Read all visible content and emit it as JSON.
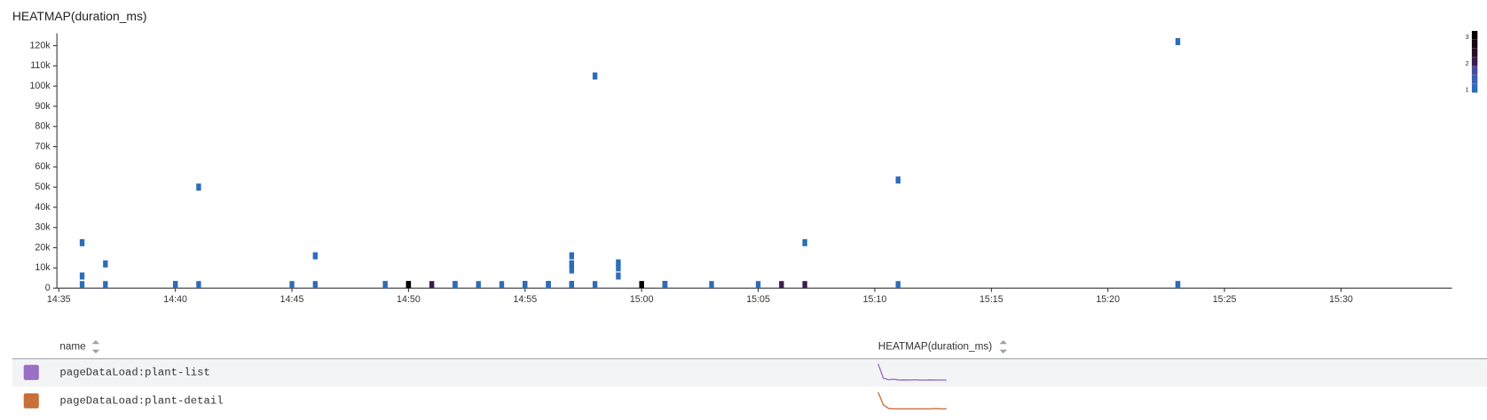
{
  "chart_data": {
    "type": "heatmap",
    "title": "HEATMAP(duration_ms)",
    "xlim": [
      "14:35",
      "15:35"
    ],
    "xticks": [
      "14:35",
      "14:40",
      "14:45",
      "14:50",
      "14:55",
      "15:00",
      "15:05",
      "15:10",
      "15:15",
      "15:20",
      "15:25",
      "15:30"
    ],
    "ylim": [
      0,
      125000
    ],
    "yticks": [
      0,
      {
        "value": 10000,
        "label": "10k"
      },
      {
        "value": 20000,
        "label": "20k"
      },
      {
        "value": 30000,
        "label": "30k"
      },
      {
        "value": 40000,
        "label": "40k"
      },
      {
        "value": 50000,
        "label": "50k"
      },
      {
        "value": 60000,
        "label": "60k"
      },
      {
        "value": 70000,
        "label": "70k"
      },
      {
        "value": 80000,
        "label": "80k"
      },
      {
        "value": 90000,
        "label": "90k"
      },
      {
        "value": 100000,
        "label": "100k"
      },
      {
        "value": 110000,
        "label": "110k"
      },
      {
        "value": 120000,
        "label": "120k"
      }
    ],
    "cells": {
      "x": [
        "14:36",
        "14:37",
        "14:40",
        "14:40",
        "14:41",
        "14:45",
        "14:46",
        "14:49",
        "14:49",
        "14:50",
        "14:50",
        "14:50",
        "14:51",
        "14:52",
        "14:52",
        "14:52",
        "14:53",
        "14:54",
        "14:55",
        "14:55",
        "14:55",
        "14:56",
        "14:56",
        "14:56",
        "14:56",
        "14:57",
        "14:57",
        "14:58",
        "15:00",
        "15:00",
        "15:01",
        "15:01",
        "15:01",
        "15:03",
        "15:05",
        "15:06",
        "15:07",
        "15:11",
        "15:23",
        "15:23",
        "14:36",
        "14:36",
        "14:37",
        "14:41",
        "14:46",
        "14:57",
        "14:57",
        "14:57",
        "14:57",
        "14:58",
        "14:59",
        "14:59",
        "14:59",
        "15:07",
        "15:11",
        "15:23"
      ],
      "y": [
        1750,
        1750,
        1750,
        1750,
        1750,
        1750,
        1750,
        1750,
        1750,
        1750,
        1750,
        1750,
        1750,
        1750,
        1750,
        1750,
        1750,
        1750,
        1750,
        1750,
        1750,
        1750,
        1750,
        1750,
        1750,
        1750,
        1750,
        1750,
        1750,
        1750,
        1750,
        1750,
        1750,
        1750,
        1750,
        1750,
        1750,
        1750,
        1750,
        1750,
        6000,
        22500,
        12000,
        50000,
        16000,
        12000,
        16000,
        12000,
        9000,
        105000,
        6000,
        10000,
        12500,
        22500,
        53500,
        122000
      ],
      "values": [
        1,
        1,
        1,
        1,
        1,
        1,
        1,
        1,
        1,
        3,
        1,
        3,
        2,
        1,
        1,
        1,
        1,
        1,
        3,
        1,
        1,
        1,
        1,
        1,
        1,
        3,
        1,
        1,
        1,
        3,
        1,
        3,
        1,
        1,
        1,
        2,
        2,
        1,
        1,
        1,
        1,
        1,
        1,
        1,
        1,
        1,
        1,
        1,
        1,
        1,
        1,
        1,
        1,
        1,
        1,
        1
      ]
    },
    "color_scale": {
      "ticks": [
        1,
        2,
        3
      ],
      "colors": [
        "#2c6db9",
        "#3b5fb0",
        "#4a4a9c",
        "#3a1c4f",
        "#2a0e28",
        "#160611",
        "#000000"
      ]
    }
  },
  "table": {
    "columns": [
      "name",
      "HEATMAP(duration_ms)"
    ],
    "rows": [
      {
        "color": "#9b6fc6",
        "name": "pageDataLoad:plant-list",
        "sparkline": [
          100,
          20,
          12,
          14,
          10,
          11,
          10,
          12,
          10,
          10,
          11,
          10,
          10,
          10
        ]
      },
      {
        "color": "#c8703a",
        "name": "pageDataLoad:plant-detail",
        "sparkline": [
          100,
          30,
          10,
          8,
          8,
          8,
          8,
          8,
          8,
          8,
          8,
          10,
          8,
          8
        ]
      }
    ]
  }
}
